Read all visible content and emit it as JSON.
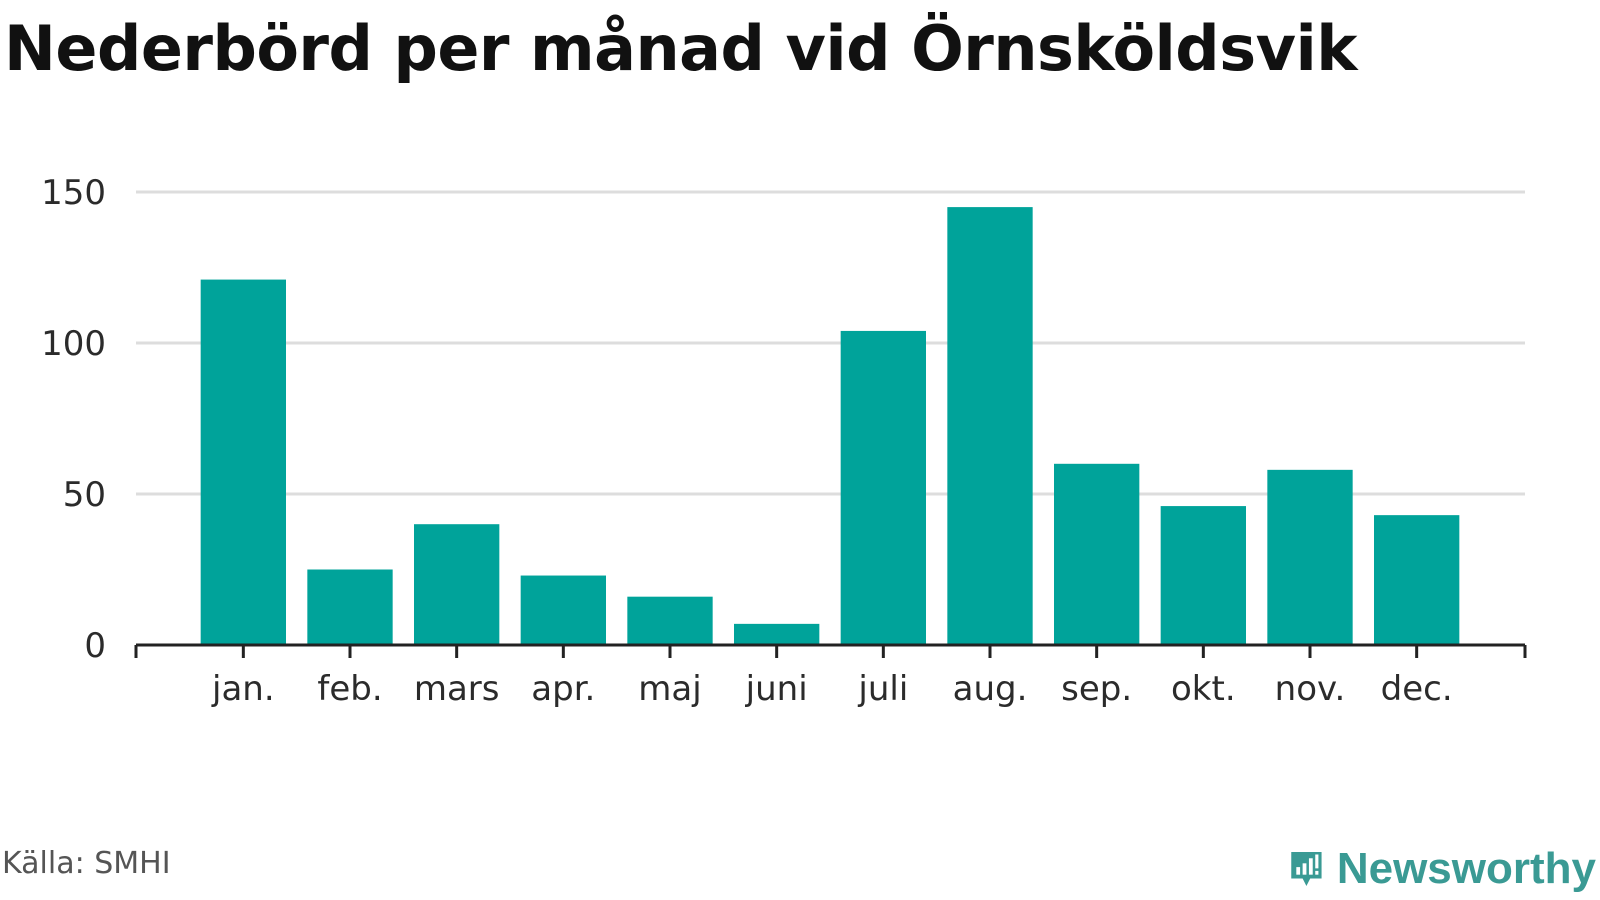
{
  "title": "Nederbörd per månad vid Örnsköldsvik",
  "source": "Källa: SMHI",
  "brand": {
    "name": "Newsworthy",
    "icon": "newsworthy-logo-icon",
    "color": "#3a9a94"
  },
  "colors": {
    "bar": "#00a39a",
    "grid": "#dddddd",
    "axis": "#222222"
  },
  "chart_data": {
    "type": "bar",
    "categories": [
      "jan.",
      "feb.",
      "mars",
      "apr.",
      "maj",
      "juni",
      "juli",
      "aug.",
      "sep.",
      "okt.",
      "nov.",
      "dec."
    ],
    "values": [
      121,
      25,
      40,
      23,
      16,
      7,
      104,
      145,
      60,
      46,
      58,
      43
    ],
    "yticks": [
      0,
      50,
      100,
      150
    ],
    "ylim": [
      0,
      150
    ],
    "title": "Nederbörd per månad vid Örnsköldsvik",
    "xlabel": "",
    "ylabel": "",
    "grid": true,
    "legend": "none"
  }
}
